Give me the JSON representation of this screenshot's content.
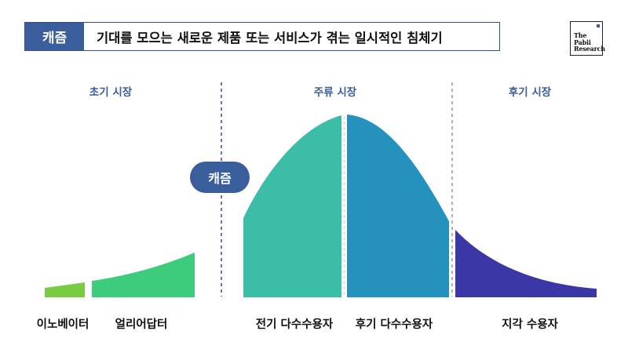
{
  "header": {
    "tag": "캐즘",
    "title": "기대를 모으는 새로운 제품 또는 서비스가 겪는 일시적인 침체기"
  },
  "logo": {
    "line1": "The",
    "line2": "Pabii",
    "line3": "Research"
  },
  "sections": {
    "early": "초기 시장",
    "main": "주류 시장",
    "late": "후기 시장"
  },
  "chasm_label": "캐즘",
  "segments": [
    {
      "label": "이노베이터",
      "color": "#77cc44"
    },
    {
      "label": "얼리어답터",
      "color": "#3dcc7c"
    },
    {
      "label": "전기 다수수용자",
      "color": "#3cbda8"
    },
    {
      "label": "후기 다수수용자",
      "color": "#2592bd"
    },
    {
      "label": "지각 수용자",
      "color": "#3c37a6"
    }
  ],
  "colors": {
    "accent": "#3a5d9c",
    "divider_blue": "#3a5d9c",
    "divider_gray": "#9a9a9a"
  }
}
